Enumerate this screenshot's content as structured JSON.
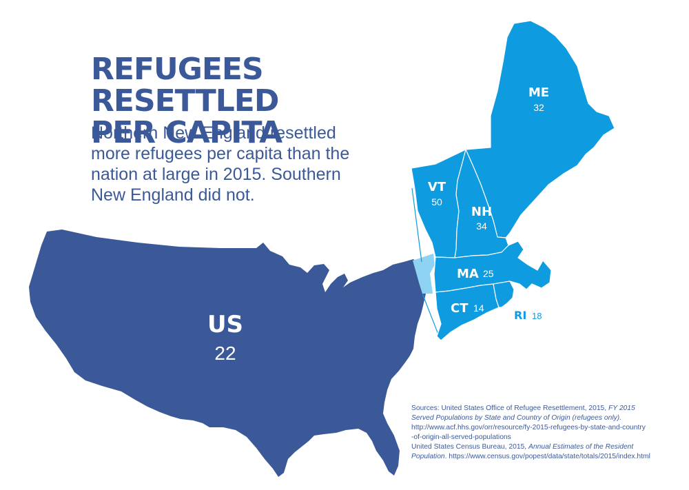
{
  "title_line1": "REFUGEES RESETTLED",
  "title_line2": "PER CAPITA",
  "subtitle_lines": [
    "Northern New England resettled",
    "more refugees per capita than the",
    "nation at large in 2015. Southern",
    "New England did not."
  ],
  "colors": {
    "us": "#3b5998",
    "state_fill": "#0e9bdf",
    "ny_highlight": "#8fd3f2",
    "borders": "#ffffff",
    "text": "#3b5998"
  },
  "regions": [
    {
      "id": "US",
      "label": "US",
      "value": "22"
    },
    {
      "id": "ME",
      "label": "ME",
      "value": "32"
    },
    {
      "id": "VT",
      "label": "VT",
      "value": "50"
    },
    {
      "id": "NH",
      "label": "NH",
      "value": "34"
    },
    {
      "id": "MA",
      "label": "MA",
      "value": "25"
    },
    {
      "id": "CT",
      "label": "CT",
      "value": "14"
    },
    {
      "id": "RI",
      "label": "RI",
      "value": "18"
    }
  ],
  "sources": {
    "line1": "Sources: United States Office of Refugee Resettlement, 2015, ",
    "line1_italic": "FY 2015",
    "line2_italic": "Served Populations by State and Country of Origin (refugees only).",
    "line3": "http://www.acf.hhs.gov/orr/resource/fy-2015-refugees-by-state-and-country",
    "line4": "-of-origin-all-served-populations",
    "line5": "United States Census Bureau, 2015, ",
    "line5_italic": "Annual Estimates of the Resident",
    "line6_italic": "Population",
    "line6": ". https://www.census.gov/popest/data/state/totals/2015/index.html"
  }
}
